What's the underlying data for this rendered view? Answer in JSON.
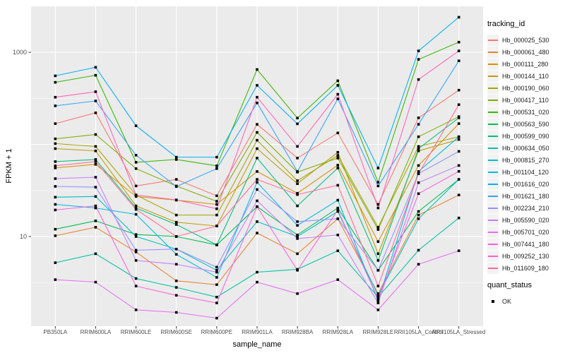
{
  "chart_data": {
    "type": "line",
    "title": "",
    "xlabel": "sample_name",
    "ylabel": "FPKM + 1",
    "y_scale": "log10",
    "ylim": [
      1,
      3000
    ],
    "grid": true,
    "panel_bg": "#EBEBEB",
    "grid_color": "#FFFFFF",
    "axis_text_color": "#4D4D4D",
    "point_shape": "filled-square",
    "point_color": "#000000",
    "legend_key_bg": "#F2F2F2",
    "legend_position": "right",
    "y_ticks": [
      {
        "label": "1000",
        "value": 1000
      },
      {
        "label": "10",
        "value": 10
      }
    ],
    "categories": [
      "PB350LA",
      "RRIM600LA",
      "RRIM600LE",
      "RRIM600SE",
      "RRIM600PE",
      "RRIM901LA",
      "RRIM928BA",
      "RRIM928LA",
      "RRIM928LE",
      "RRII105LA_Control",
      "RRII105LA_Stressed"
    ],
    "legend": {
      "color_title": "tracking_id",
      "shape_title": "quant_status",
      "shape_label": "OK"
    },
    "series": [
      {
        "name": "Hb_000025_530",
        "color": "#F8766D",
        "values": [
          168,
          220,
          35.4,
          41.7,
          27.7,
          165,
          71,
          133,
          22.3,
          194,
          388
        ]
      },
      {
        "name": "Hb_000061_480",
        "color": "#EA8331",
        "values": [
          10.2,
          12.6,
          6.8,
          3.3,
          3.0,
          10.9,
          6.5,
          15.6,
          2.4,
          17.1,
          28.2
        ]
      },
      {
        "name": "Hb_000111_280",
        "color": "#D89000",
        "values": [
          55.5,
          60.7,
          27.2,
          24.8,
          22.3,
          50.8,
          29.5,
          59.5,
          8.8,
          59,
          168
        ]
      },
      {
        "name": "Hb_000144_110",
        "color": "#C09B00",
        "values": [
          90,
          85,
          21.5,
          14.3,
          13.0,
          90,
          37.4,
          82,
          6.5,
          85,
          113
        ]
      },
      {
        "name": "Hb_000190_060",
        "color": "#A3A500",
        "values": [
          102,
          95,
          28.2,
          17.1,
          17.1,
          111,
          40.3,
          76,
          12.6,
          95,
          121
        ]
      },
      {
        "name": "Hb_000417_110",
        "color": "#7CAE00",
        "values": [
          115,
          128,
          54.6,
          35.4,
          24.1,
          135,
          50,
          71,
          11.9,
          121,
          200
        ]
      },
      {
        "name": "Hb_000531_020",
        "color": "#39B600",
        "values": [
          472,
          563,
          63.9,
          68.6,
          58.5,
          650,
          193,
          490,
          38.8,
          837,
          1287
        ]
      },
      {
        "name": "Hb_000563_590",
        "color": "#00BB4E",
        "values": [
          12,
          14.8,
          10.5,
          10.0,
          8.1,
          21.1,
          10.4,
          20.4,
          4.3,
          18.7,
          41.7
        ]
      },
      {
        "name": "Hb_000599_090",
        "color": "#00BF7D",
        "values": [
          65,
          68.6,
          20.4,
          13.5,
          8.1,
          71,
          21.5,
          55.4,
          5.5,
          90,
          194
        ]
      },
      {
        "name": "Hb_000634_050",
        "color": "#00C1A3",
        "values": [
          5.2,
          6.5,
          3.5,
          2.8,
          2.2,
          4.1,
          4.4,
          7.0,
          2.2,
          7.1,
          15.9
        ]
      },
      {
        "name": "Hb_000815_270",
        "color": "#00BFC4",
        "values": [
          26.7,
          27.2,
          10.0,
          7.3,
          4.3,
          14.5,
          10.0,
          18.7,
          2.3,
          15.6,
          41.7
        ]
      },
      {
        "name": "Hb_001104_120",
        "color": "#00BAE0",
        "values": [
          22.3,
          20.4,
          17.4,
          6.4,
          3.6,
          38.8,
          13.2,
          24.8,
          2.0,
          50.8,
          121
        ]
      },
      {
        "name": "Hb_001616_020",
        "color": "#00B0F6",
        "values": [
          555,
          687,
          159,
          72.6,
          72.6,
          437,
          167,
          437,
          55.4,
          1034,
          2400
        ]
      },
      {
        "name": "Hb_001621_180",
        "color": "#35A2FF",
        "values": [
          262,
          296,
          76.4,
          34.8,
          54.6,
          282,
          50.8,
          312,
          35.4,
          165,
          806
        ]
      },
      {
        "name": "Hb_002234_210",
        "color": "#9590FF",
        "values": [
          35,
          34.3,
          7.1,
          7.3,
          4.65,
          32.4,
          14.5,
          15.6,
          4.3,
          48.1,
          84
        ]
      },
      {
        "name": "Hb_005590_020",
        "color": "#C77CFF",
        "values": [
          42.5,
          44,
          5.5,
          5.0,
          4.1,
          24.4,
          9.5,
          10.4,
          1.9,
          38.4,
          59
        ]
      },
      {
        "name": "Hb_005701_020",
        "color": "#E76BF3",
        "values": [
          3.4,
          3.2,
          1.6,
          1.5,
          1.3,
          3.2,
          2.4,
          3.4,
          1.6,
          5.0,
          7.0
        ]
      },
      {
        "name": "Hb_007441_180",
        "color": "#FA62DB",
        "values": [
          19.4,
          21.5,
          2.9,
          2.3,
          1.9,
          21.1,
          4.3,
          19.4,
          2.1,
          29.2,
          51
        ]
      },
      {
        "name": "Hb_009252_130",
        "color": "#FF62BC",
        "values": [
          325,
          373,
          28.2,
          25,
          20,
          325,
          95,
          350,
          20.4,
          506,
          1034
        ]
      },
      {
        "name": "Hb_011609_180",
        "color": "#FF6A98",
        "values": [
          58.5,
          65,
          19.7,
          10.0,
          13.0,
          41.7,
          28.5,
          36,
          2.9,
          48,
          270
        ]
      }
    ]
  }
}
